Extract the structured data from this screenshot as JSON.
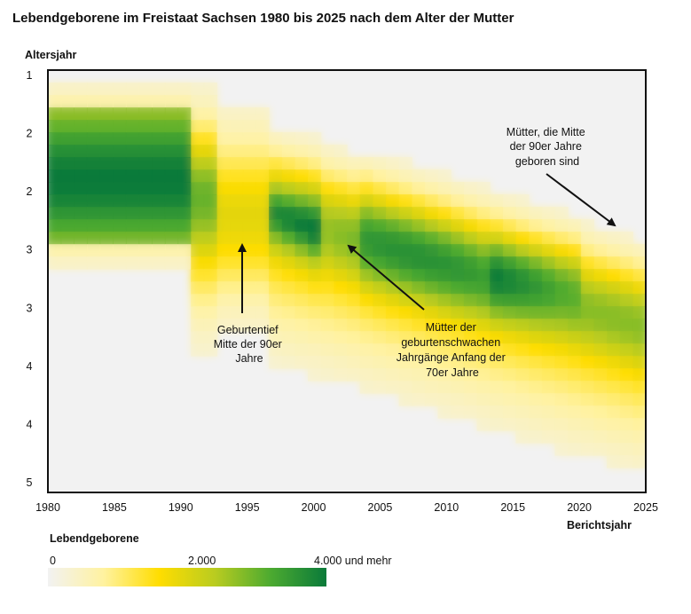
{
  "title": "Lebendgeborene im Freistaat Sachsen 1980 bis 2025 nach dem Alter der Mutter",
  "chart_data": {
    "type": "heatmap",
    "title": "Lebendgeborene im Freistaat Sachsen 1980 bis 2025 nach dem Alter der Mutter",
    "xlabel": "Berichtsjahr",
    "ylabel": "Altersjahr",
    "xlim": [
      1980,
      2025
    ],
    "xticks": [
      "1980",
      "1985",
      "1990",
      "1995",
      "2000",
      "2005",
      "2010",
      "2015",
      "2020",
      "2025"
    ],
    "yticks": [
      "1",
      "2",
      "2",
      "3",
      "3",
      "4",
      "4",
      "5"
    ],
    "colorbar": {
      "title": "Lebendgeborene",
      "labels": [
        "0",
        "2.000",
        "4.000 und mehr"
      ],
      "range": [
        0,
        4000
      ],
      "colors": [
        "#f2f2f2",
        "#fff2a0",
        "#ffdd00",
        "#b9cc20",
        "#4caa30",
        "#0a7a3a"
      ]
    },
    "annotations": [
      {
        "id": "tief",
        "lines": [
          "Geburtentief",
          "Mitte der 90er",
          "Jahre"
        ]
      },
      {
        "id": "70er",
        "lines": [
          "Mütter der",
          "geburtenschwachen",
          "Jahrgänge Anfang der",
          "70er Jahre"
        ]
      },
      {
        "id": "90er",
        "lines": [
          "Mütter, die Mitte",
          "der 90er Jahre",
          "geboren sind"
        ]
      }
    ]
  }
}
